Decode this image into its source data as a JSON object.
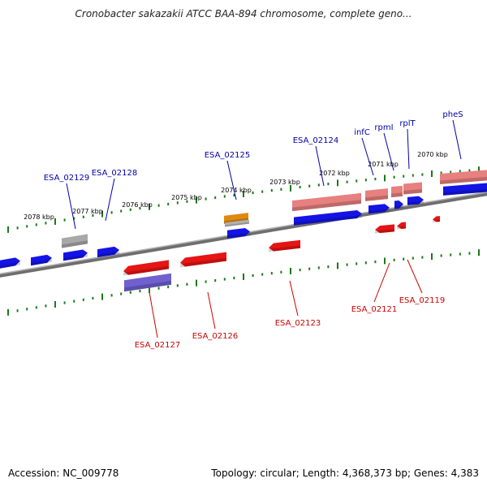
{
  "header": {
    "title": "Cronobacter sakazakii ATCC BAA-894 chromosome, complete geno..."
  },
  "footer": {
    "accession": "Accession: NC_009778",
    "topology": "Topology: circular; Length: 4,368,373 bp; Genes: 4,383"
  },
  "colors": {
    "forward_gene": "#1414e6",
    "reverse_gene": "#e61414",
    "forward_label": "#0000aa",
    "reverse_label": "#cc0000",
    "tick": "#1a7a1a",
    "backbone": "#808080"
  },
  "kbp_ticks": [
    "2078 kbp",
    "2077 kbp",
    "2076 kbp",
    "2075 kbp",
    "2074 kbp",
    "2073 kbp",
    "2072 kbp",
    "2071 kbp",
    "2070 kbp"
  ],
  "forward_gene_labels": [
    "ESA_02129",
    "ESA_02128",
    "ESA_02125",
    "ESA_02124",
    "infC",
    "rpmI",
    "rplT",
    "pheS"
  ],
  "reverse_gene_labels": [
    "ESA_02127",
    "ESA_02126",
    "ESA_02123",
    "ESA_02121",
    "ESA_02119"
  ]
}
